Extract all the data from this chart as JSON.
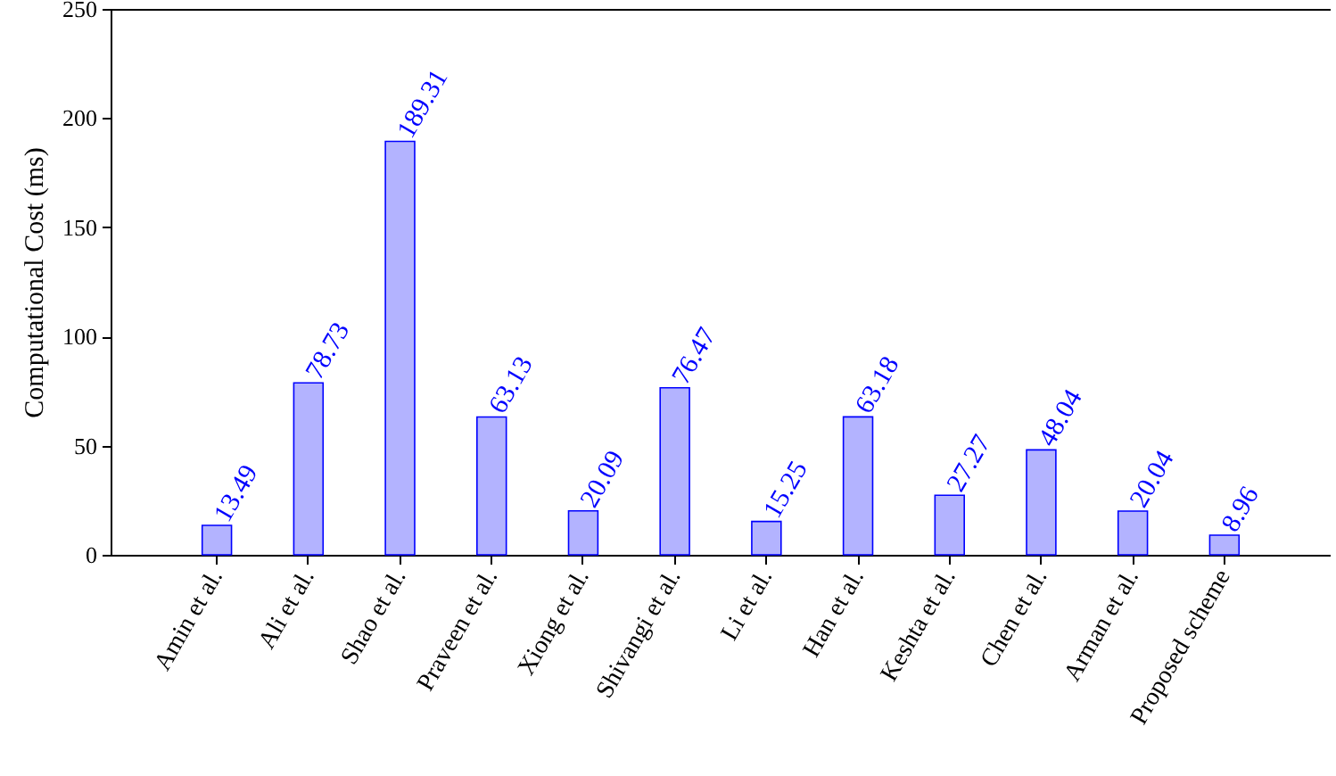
{
  "chart_data": {
    "type": "bar",
    "ylabel": "Computational Cost (ms)",
    "categories": [
      "Amin et al.",
      "Ali et al.",
      "Shao et al.",
      "Praveen et al.",
      "Xiong et al.",
      "Shivangi et al.",
      "Li et al.",
      "Han et al.",
      "Keshta et al.",
      "Chen et al.",
      "Arman et al.",
      "Proposed scheme"
    ],
    "values": [
      13.49,
      78.73,
      189.31,
      63.13,
      20.09,
      76.47,
      15.25,
      63.18,
      27.27,
      48.04,
      20.04,
      8.96
    ],
    "color": "#b3b3ff",
    "ylim": [
      0,
      250
    ],
    "yticks": [
      0,
      50,
      100,
      150,
      200,
      250
    ],
    "data_labels": true,
    "grid": false
  }
}
